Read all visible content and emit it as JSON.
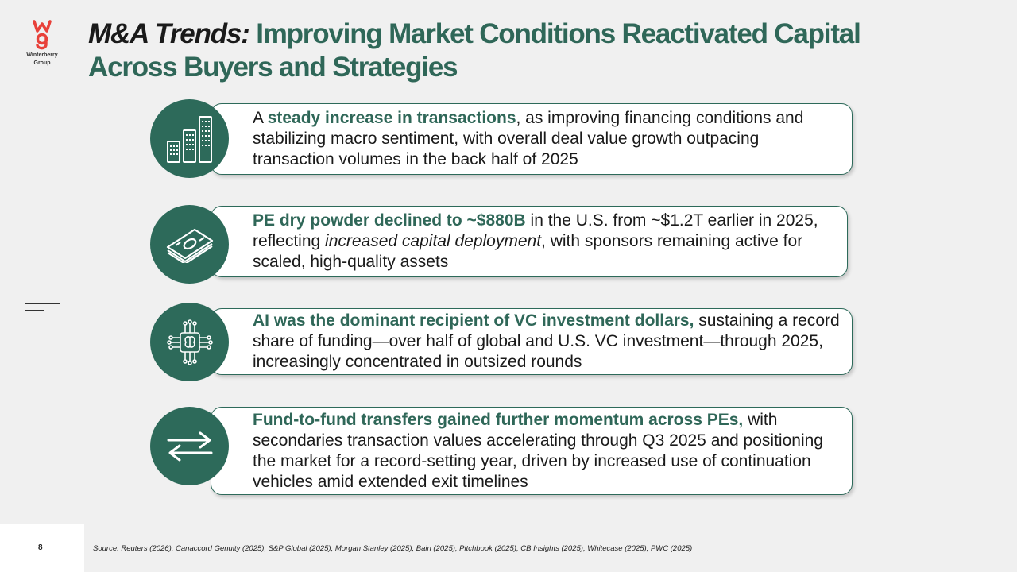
{
  "logo": {
    "brand_line1": "Winterberry",
    "brand_line2": "Group",
    "accent_color": "#e8413a"
  },
  "title": {
    "lead": "M&A Trends:",
    "line1_rest": "Improving Market Conditions Reactivated Capital",
    "line2": "Across Buyers and Strategies"
  },
  "colors": {
    "accent": "#2d6a5a",
    "background": "#f0f0f0"
  },
  "items": [
    {
      "icon": "buildings-icon",
      "pre": "A ",
      "highlight": "steady increase in transactions",
      "post": ", as improving financing conditions and stabilizing macro sentiment, with overall deal value growth outpacing transaction volumes in the back half of 2025"
    },
    {
      "icon": "money-stack-icon",
      "highlight": "PE dry powder declined to ~$880B",
      "mid": " in the U.S. from ~$1.2T earlier in 2025, reflecting ",
      "italic": "increased capital deployment",
      "post": ", with sponsors remaining active for scaled, high-quality assets"
    },
    {
      "icon": "ai-brain-circuit-icon",
      "highlight": "AI was the dominant recipient of VC investment dollars,",
      "post": " sustaining a record share of funding—over half of global and U.S. VC investment—through 2025, increasingly concentrated in outsized rounds"
    },
    {
      "icon": "transfer-arrows-icon",
      "highlight": "Fund-to-fund transfers gained further momentum across PEs,",
      "post": " with secondaries transaction values accelerating through Q3 2025 and positioning the market for a record-setting year, driven by increased use of continuation vehicles amid extended exit timelines"
    }
  ],
  "footer": {
    "page_number": "8",
    "source": "Source: Reuters (2026), Canaccord Genuity (2025), S&P Global (2025), Morgan Stanley (2025), Bain (2025), Pitchbook (2025), CB Insights (2025), Whitecase (2025), PWC (2025)"
  }
}
